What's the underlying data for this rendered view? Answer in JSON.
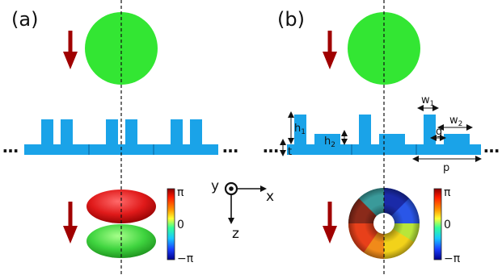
{
  "panels": [
    {
      "label": "(a)",
      "colorbar": {
        "top": "π",
        "mid": "0",
        "bottom": "−π"
      }
    },
    {
      "label": "(b)",
      "colorbar": {
        "top": "π",
        "mid": "0",
        "bottom": "−π"
      },
      "dimensions": {
        "h1": {
          "base": "h",
          "sub": "1"
        },
        "h2": {
          "base": "h",
          "sub": "2"
        },
        "t": "t",
        "w1": {
          "base": "w",
          "sub": "1"
        },
        "w2": {
          "base": "w",
          "sub": "2"
        },
        "g": "g",
        "p": "p"
      }
    }
  ],
  "axes": {
    "x": "x",
    "y": "y",
    "z": "z"
  },
  "ellipsis": "…",
  "colors": {
    "grating": "#1aa3e8",
    "grating_edge": "#0a5f99",
    "beam_green": "#33e633",
    "arrow_red": "#a00000",
    "lobe_red": "#e82020",
    "lobe_green": "#3fd43f"
  }
}
